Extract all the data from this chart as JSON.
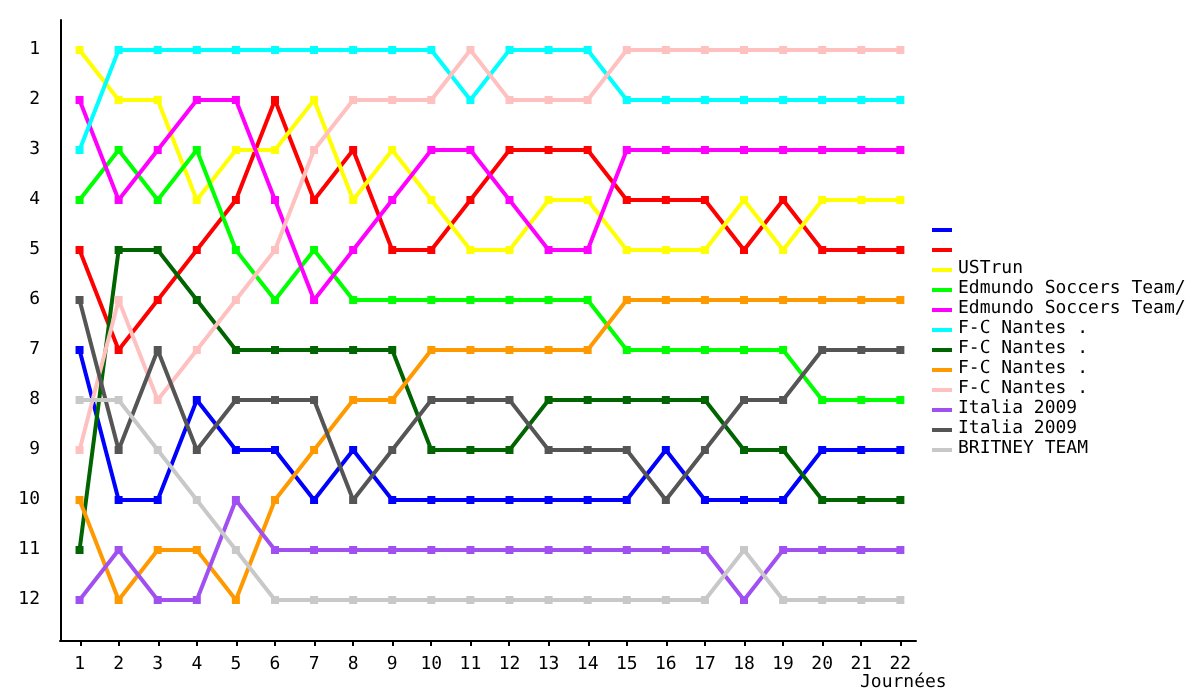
{
  "chart_data": {
    "type": "line",
    "xlabel": "Journées",
    "x": [
      1,
      2,
      3,
      4,
      5,
      6,
      7,
      8,
      9,
      10,
      11,
      12,
      13,
      14,
      15,
      16,
      17,
      18,
      19,
      20,
      21,
      22
    ],
    "xlim": [
      0.5,
      22.4
    ],
    "xticks": [
      1,
      2,
      3,
      4,
      5,
      6,
      7,
      8,
      9,
      10,
      11,
      12,
      13,
      14,
      15,
      16,
      17,
      18,
      19,
      20,
      21,
      22
    ],
    "ylim": [
      12.8,
      0.4
    ],
    "yticks": [
      1,
      2,
      3,
      4,
      5,
      6,
      7,
      8,
      9,
      10,
      11,
      12
    ],
    "grid": false,
    "legend": "right",
    "marker": "square",
    "line_style": "solid",
    "series": [
      {
        "color": "#0000ff",
        "values": [
          7,
          10,
          10,
          8,
          9,
          9,
          10,
          9,
          10,
          10,
          10,
          10,
          10,
          10,
          10,
          9,
          10,
          10,
          10,
          9,
          9,
          9
        ]
      },
      {
        "color": "#ff0000",
        "values": [
          5,
          7,
          6,
          5,
          4,
          2,
          4,
          3,
          5,
          5,
          4,
          3,
          3,
          3,
          4,
          4,
          4,
          5,
          4,
          5,
          5,
          5
        ]
      },
      {
        "name": "USTrun",
        "color": "#ffff00",
        "values": [
          1,
          2,
          2,
          4,
          3,
          3,
          2,
          4,
          3,
          4,
          5,
          5,
          4,
          4,
          5,
          5,
          5,
          4,
          5,
          4,
          4,
          4
        ]
      },
      {
        "name": "Edmundo Soccers Team/",
        "color": "#00ff00",
        "values": [
          4,
          3,
          4,
          3,
          5,
          6,
          5,
          6,
          6,
          6,
          6,
          6,
          6,
          6,
          7,
          7,
          7,
          7,
          7,
          8,
          8,
          8
        ]
      },
      {
        "name": "Edmundo Soccers Team/",
        "color": "#ff00ff",
        "values": [
          2,
          4,
          3,
          2,
          2,
          4,
          6,
          5,
          4,
          3,
          3,
          4,
          5,
          5,
          3,
          3,
          3,
          3,
          3,
          3,
          3,
          3
        ]
      },
      {
        "name": "F-C Nantes .",
        "color": "#00ffff",
        "values": [
          3,
          1,
          1,
          1,
          1,
          1,
          1,
          1,
          1,
          1,
          2,
          1,
          1,
          1,
          2,
          2,
          2,
          2,
          2,
          2,
          2,
          2
        ]
      },
      {
        "name": "F-C Nantes .",
        "color": "#006400",
        "values": [
          11,
          5,
          5,
          6,
          7,
          7,
          7,
          7,
          7,
          9,
          9,
          9,
          8,
          8,
          8,
          8,
          8,
          9,
          9,
          10,
          10,
          10
        ]
      },
      {
        "name": "F-C Nantes .",
        "color": "#ff9900",
        "values": [
          10,
          12,
          11,
          11,
          12,
          10,
          9,
          8,
          8,
          7,
          7,
          7,
          7,
          7,
          6,
          6,
          6,
          6,
          6,
          6,
          6,
          6
        ]
      },
      {
        "name": "F-C Nantes .",
        "color": "#ffc0c0",
        "values": [
          9,
          6,
          8,
          7,
          6,
          5,
          3,
          2,
          2,
          2,
          1,
          2,
          2,
          2,
          1,
          1,
          1,
          1,
          1,
          1,
          1,
          1
        ]
      },
      {
        "name": "Italia 2009",
        "color": "#a050f0",
        "values": [
          12,
          11,
          12,
          12,
          10,
          11,
          11,
          11,
          11,
          11,
          11,
          11,
          11,
          11,
          11,
          11,
          11,
          12,
          11,
          11,
          11,
          11
        ]
      },
      {
        "name": "Italia 2009",
        "color": "#555555",
        "values": [
          6,
          9,
          7,
          9,
          8,
          8,
          8,
          10,
          9,
          8,
          8,
          8,
          9,
          9,
          9,
          10,
          9,
          8,
          8,
          7,
          7,
          7
        ]
      },
      {
        "name": "BRITNEY TEAM",
        "color": "#c8c8c8",
        "values": [
          8,
          8,
          9,
          10,
          11,
          12,
          12,
          12,
          12,
          12,
          12,
          12,
          12,
          12,
          12,
          12,
          12,
          11,
          12,
          12,
          12,
          12
        ]
      }
    ]
  }
}
